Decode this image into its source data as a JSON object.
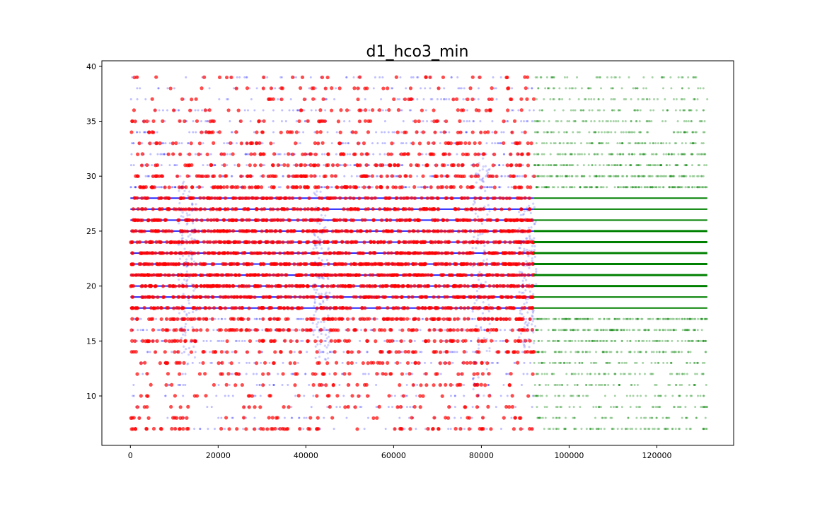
{
  "chart_data": {
    "type": "scatter",
    "title": "d1_hco3_min",
    "xlabel": "",
    "ylabel": "",
    "xlim": [
      -6500,
      137500
    ],
    "ylim": [
      5.5,
      40.5
    ],
    "xticks": [
      0,
      20000,
      40000,
      60000,
      80000,
      100000,
      120000
    ],
    "yticks": [
      10,
      15,
      20,
      25,
      30,
      35,
      40
    ],
    "grid": false,
    "y_levels": [
      7,
      8,
      9,
      10,
      11,
      12,
      13,
      14,
      15,
      16,
      17,
      18,
      19,
      20,
      21,
      22,
      23,
      24,
      25,
      26,
      27,
      28,
      29,
      30,
      31,
      32,
      33,
      34,
      35,
      36,
      37,
      38,
      39
    ],
    "series": [
      {
        "color": "#0000ff",
        "x_range": [
          0,
          92000
        ],
        "level_density": [
          0.06,
          0.04,
          0.04,
          0.05,
          0.06,
          0.07,
          0.1,
          0.14,
          0.2,
          0.3,
          0.42,
          0.55,
          0.7,
          0.85,
          1.0,
          0.95,
          0.9,
          0.85,
          0.8,
          0.72,
          0.62,
          0.52,
          0.42,
          0.34,
          0.28,
          0.22,
          0.18,
          0.14,
          0.12,
          0.1,
          0.08,
          0.07,
          0.06
        ]
      },
      {
        "color": "#ff0000",
        "x_range": [
          0,
          92000
        ],
        "level_density": [
          0.24,
          0.12,
          0.1,
          0.1,
          0.14,
          0.16,
          0.2,
          0.26,
          0.34,
          0.42,
          0.55,
          0.65,
          0.75,
          0.88,
          1.0,
          0.95,
          0.9,
          0.85,
          0.8,
          0.7,
          0.6,
          0.52,
          0.45,
          0.38,
          0.3,
          0.26,
          0.2,
          0.16,
          0.14,
          0.12,
          0.1,
          0.09,
          0.08
        ]
      },
      {
        "color": "#008000",
        "x_range": [
          92000,
          131500
        ],
        "level_density": [
          0.22,
          0.12,
          0.12,
          0.12,
          0.14,
          0.16,
          0.2,
          0.28,
          0.36,
          0.46,
          0.58,
          0.68,
          0.76,
          0.86,
          0.95,
          1.0,
          0.95,
          0.9,
          0.85,
          0.8,
          0.75,
          0.68,
          0.58,
          0.48,
          0.4,
          0.32,
          0.25,
          0.2,
          0.16,
          0.12,
          0.1,
          0.08,
          0.07
        ]
      }
    ]
  }
}
